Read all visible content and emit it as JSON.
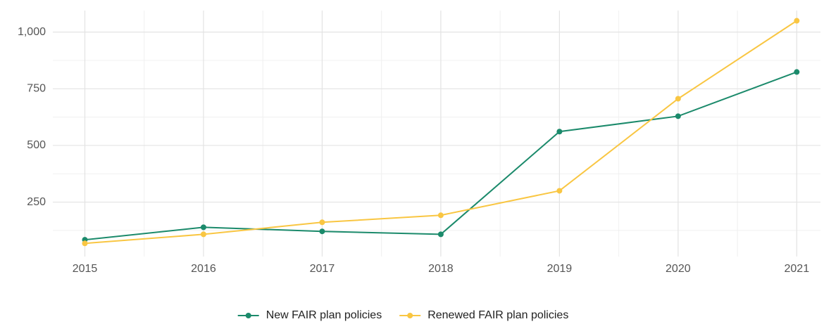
{
  "chart_data": {
    "type": "line",
    "x": [
      2015,
      2016,
      2017,
      2018,
      2019,
      2020,
      2021
    ],
    "series": [
      {
        "name": "New FAIR plan policies",
        "color": "#1b8a6b",
        "values": [
          84,
          139,
          121,
          108,
          561,
          629,
          824
        ]
      },
      {
        "name": "Renewed FAIR plan policies",
        "color": "#f9c642",
        "values": [
          68,
          108,
          161,
          192,
          300,
          706,
          1050
        ]
      }
    ],
    "xlim": [
      2014.73,
      2021.2
    ],
    "xticks": [
      2015,
      2016,
      2017,
      2018,
      2019,
      2020,
      2021
    ],
    "ylim": [
      10,
      1095
    ],
    "yticks": [
      250,
      500,
      750,
      {
        "value": 1000,
        "label": "1,000"
      }
    ],
    "grid": true,
    "legend": "bottom"
  }
}
